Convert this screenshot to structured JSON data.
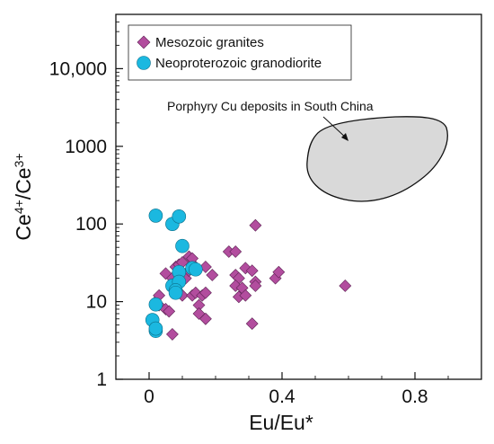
{
  "chart_data": {
    "type": "scatter",
    "title": "",
    "xlabel": "Eu/Eu*",
    "ylabel": "Ce4+/Ce3+",
    "ylabel_base": "Ce",
    "ylabel_sup1": "4+",
    "ylabel_slash": "/Ce",
    "ylabel_sup2": "3+",
    "xlim": [
      -0.1,
      1.0
    ],
    "ylim": [
      1,
      50000
    ],
    "yscale": "log",
    "xticks": [
      0,
      0.4,
      0.8
    ],
    "xtick_labels": [
      "0",
      "0.4",
      "0.8"
    ],
    "yticks": [
      1,
      10,
      100,
      1000,
      10000
    ],
    "ytick_labels": [
      "1",
      "10",
      "100",
      "1000",
      "10,000"
    ],
    "grid": false,
    "legend_position": "top-left",
    "series": [
      {
        "name": "Mesozoic granites",
        "marker": "diamond",
        "color": "#b24d9e",
        "points": [
          [
            0.02,
            10
          ],
          [
            0.03,
            12
          ],
          [
            0.03,
            9
          ],
          [
            0.05,
            8
          ],
          [
            0.06,
            7.5
          ],
          [
            0.07,
            3.8
          ],
          [
            0.05,
            23
          ],
          [
            0.07,
            20
          ],
          [
            0.08,
            28
          ],
          [
            0.09,
            30
          ],
          [
            0.1,
            32
          ],
          [
            0.12,
            38
          ],
          [
            0.13,
            36
          ],
          [
            0.11,
            20
          ],
          [
            0.12,
            25
          ],
          [
            0.14,
            28
          ],
          [
            0.1,
            12
          ],
          [
            0.13,
            12
          ],
          [
            0.14,
            13
          ],
          [
            0.15,
            9
          ],
          [
            0.16,
            12
          ],
          [
            0.15,
            7
          ],
          [
            0.17,
            13
          ],
          [
            0.17,
            6
          ],
          [
            0.17,
            28
          ],
          [
            0.19,
            22
          ],
          [
            0.24,
            44
          ],
          [
            0.26,
            44
          ],
          [
            0.26,
            22
          ],
          [
            0.27,
            20
          ],
          [
            0.26,
            16
          ],
          [
            0.27,
            11.5
          ],
          [
            0.28,
            15
          ],
          [
            0.29,
            12
          ],
          [
            0.29,
            27
          ],
          [
            0.31,
            25
          ],
          [
            0.32,
            18
          ],
          [
            0.32,
            16
          ],
          [
            0.31,
            5.2
          ],
          [
            0.32,
            96
          ],
          [
            0.38,
            20
          ],
          [
            0.39,
            24
          ],
          [
            0.59,
            16
          ]
        ]
      },
      {
        "name": "Neoproterozoic granodiorite",
        "marker": "circle",
        "color": "#1bb8e0",
        "points": [
          [
            0.02,
            128
          ],
          [
            0.07,
            100
          ],
          [
            0.09,
            125
          ],
          [
            0.01,
            5.8
          ],
          [
            0.02,
            4.2
          ],
          [
            0.02,
            4.5
          ],
          [
            0.02,
            9.2
          ],
          [
            0.07,
            16
          ],
          [
            0.09,
            24
          ],
          [
            0.09,
            18
          ],
          [
            0.08,
            14
          ],
          [
            0.1,
            52
          ],
          [
            0.13,
            27
          ],
          [
            0.14,
            26
          ],
          [
            0.08,
            13
          ]
        ]
      }
    ],
    "annotations": [
      {
        "text": "Porphyry Cu deposits in South China",
        "region_shape": "closed-curve",
        "region_fill": "#d9d9d9"
      }
    ]
  }
}
